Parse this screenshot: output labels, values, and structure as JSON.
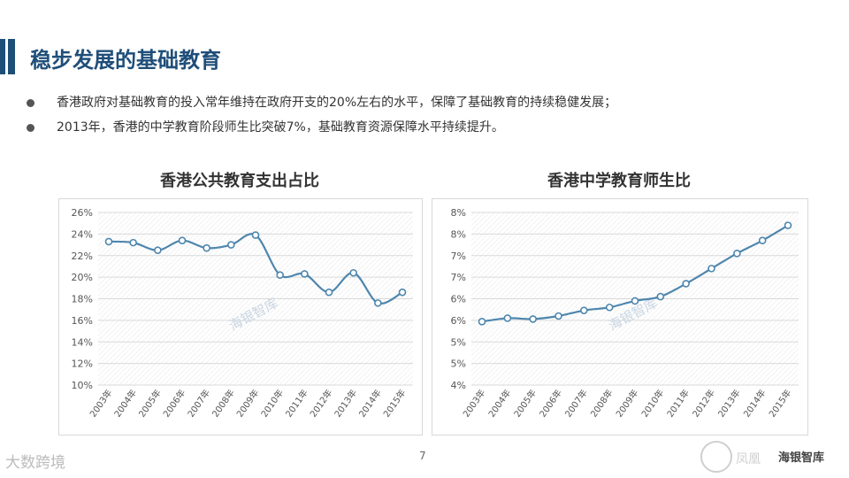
{
  "page": {
    "title": "稳步发展的基础教育",
    "bullets": [
      "香港政府对基础教育的投入常年维持在政府开支的20%左右的水平，保障了基础教育的持续稳健发展；",
      "2013年，香港的中学教育阶段师生比突破7%，基础教育资源保障水平持续提升。"
    ],
    "page_number": "7",
    "footer_left_text": "大数跨境",
    "footer_right_text": "海银智库",
    "footer_right_faded": "凤凰"
  },
  "colors": {
    "title": "#1f4e79",
    "line": "#4e86ad",
    "grid": "#d9d9d9"
  },
  "chart_data": [
    {
      "type": "line",
      "title": "香港公共教育支出占比",
      "x": [
        "2003年",
        "2004年",
        "2005年",
        "2006年",
        "2007年",
        "2008年",
        "2009年",
        "2010年",
        "2011年",
        "2012年",
        "2013年",
        "2014年",
        "2015年"
      ],
      "y_ticks": [
        "26%",
        "24%",
        "22%",
        "20%",
        "18%",
        "16%",
        "14%",
        "12%",
        "10%"
      ],
      "ylim": [
        10,
        26
      ],
      "values": [
        23.3,
        23.2,
        22.5,
        23.4,
        22.7,
        23.0,
        23.9,
        20.2,
        20.3,
        18.6,
        20.4,
        17.6,
        18.6
      ],
      "watermark": "海银智库",
      "grid": true
    },
    {
      "type": "line",
      "title": "香港中学教育师生比",
      "x": [
        "2003年",
        "2004年",
        "2005年",
        "2006年",
        "2007年",
        "2008年",
        "2009年",
        "2010年",
        "2011年",
        "2012年",
        "2013年",
        "2014年",
        "2015年"
      ],
      "y_ticks": [
        "8%",
        "8%",
        "7%",
        "7%",
        "6%",
        "6%",
        "5%",
        "5%",
        "4%"
      ],
      "ylim": [
        4.0,
        8.0
      ],
      "values": [
        5.47,
        5.55,
        5.53,
        5.6,
        5.73,
        5.8,
        5.95,
        6.05,
        6.35,
        6.7,
        7.05,
        7.35,
        7.7
      ],
      "watermark": "海银智库",
      "grid": true
    }
  ]
}
